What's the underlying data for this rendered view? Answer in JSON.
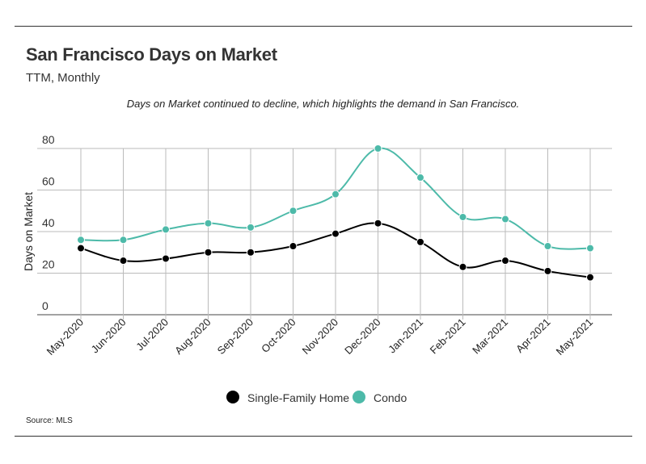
{
  "header": {
    "title": "San Francisco Days on Market",
    "subtitle": "TTM, Monthly",
    "note": "Days on Market continued to decline, which highlights the demand in San Francisco."
  },
  "footer": {
    "source": "Source:  MLS"
  },
  "colors": {
    "single_family": "#000000",
    "condo": "#4dbaa9",
    "grid": "#bbbbbb"
  },
  "chart_data": {
    "type": "line",
    "title": "San Francisco Days on Market",
    "subtitle": "TTM, Monthly",
    "xlabel": "",
    "ylabel": "Days on Market",
    "ylim": [
      0,
      80
    ],
    "yticks": [
      0,
      20,
      40,
      60,
      80
    ],
    "grid": true,
    "legend": "bottom-center",
    "categories": [
      "May-2020",
      "Jun-2020",
      "Jul-2020",
      "Aug-2020",
      "Sep-2020",
      "Oct-2020",
      "Nov-2020",
      "Dec-2020",
      "Jan-2021",
      "Feb-2021",
      "Mar-2021",
      "Apr-2021",
      "May-2021"
    ],
    "series": [
      {
        "name": "Single-Family Home",
        "color": "#000000",
        "values": [
          32,
          26,
          27,
          30,
          30,
          33,
          39,
          44,
          35,
          23,
          26,
          21,
          18
        ]
      },
      {
        "name": "Condo",
        "color": "#4dbaa9",
        "values": [
          36,
          36,
          41,
          44,
          42,
          50,
          58,
          80,
          66,
          47,
          46,
          33,
          32
        ]
      }
    ]
  }
}
